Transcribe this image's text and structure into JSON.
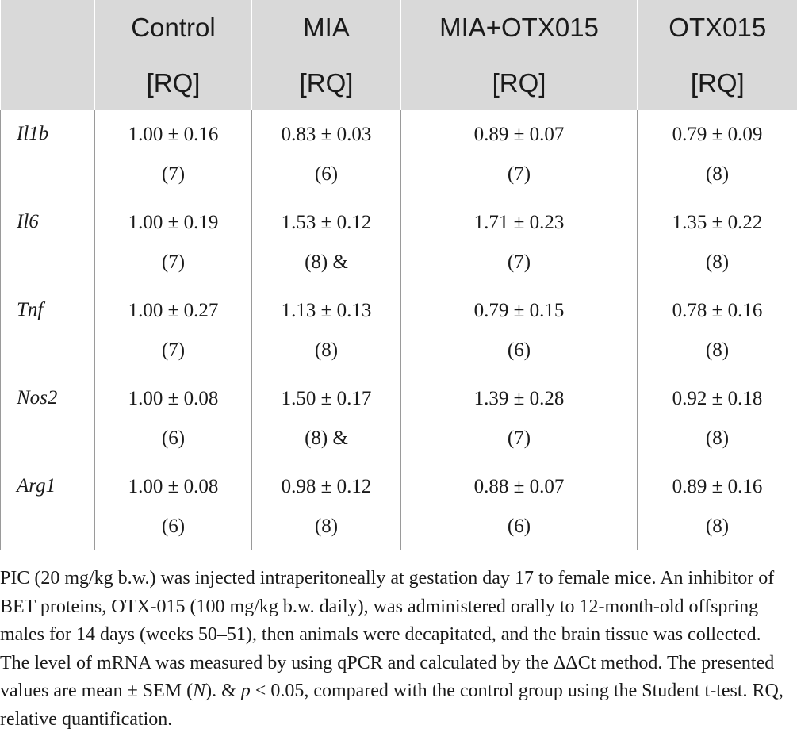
{
  "table": {
    "headers": [
      {
        "name": "",
        "unit": ""
      },
      {
        "name": "Control",
        "unit": "[RQ]"
      },
      {
        "name": "MIA",
        "unit": "[RQ]"
      },
      {
        "name": "MIA+OTX015",
        "unit": "[RQ]"
      },
      {
        "name": "OTX015",
        "unit": "[RQ]"
      }
    ],
    "rows": [
      {
        "gene": "Il1b",
        "cells": [
          {
            "value": "1.00 ± 0.16",
            "n": "(7)"
          },
          {
            "value": "0.83 ± 0.03",
            "n": "(6)"
          },
          {
            "value": "0.89 ± 0.07",
            "n": "(7)"
          },
          {
            "value": "0.79 ± 0.09",
            "n": "(8)"
          }
        ]
      },
      {
        "gene": "Il6",
        "cells": [
          {
            "value": "1.00 ± 0.19",
            "n": "(7)"
          },
          {
            "value": "1.53 ± 0.12",
            "n": "(8) &"
          },
          {
            "value": "1.71 ± 0.23",
            "n": "(7)"
          },
          {
            "value": "1.35 ± 0.22",
            "n": "(8)"
          }
        ]
      },
      {
        "gene": "Tnf",
        "cells": [
          {
            "value": "1.00 ± 0.27",
            "n": "(7)"
          },
          {
            "value": "1.13 ± 0.13",
            "n": "(8)"
          },
          {
            "value": "0.79 ± 0.15",
            "n": "(6)"
          },
          {
            "value": "0.78 ± 0.16",
            "n": "(8)"
          }
        ]
      },
      {
        "gene": "Nos2",
        "cells": [
          {
            "value": "1.00 ± 0.08",
            "n": "(6)"
          },
          {
            "value": "1.50 ± 0.17",
            "n": "(8) &"
          },
          {
            "value": "1.39 ± 0.28",
            "n": "(7)"
          },
          {
            "value": "0.92 ± 0.18",
            "n": "(8)"
          }
        ]
      },
      {
        "gene": "Arg1",
        "cells": [
          {
            "value": "1.00 ± 0.08",
            "n": "(6)"
          },
          {
            "value": "0.98 ± 0.12",
            "n": "(8)"
          },
          {
            "value": "0.88 ± 0.07",
            "n": "(6)"
          },
          {
            "value": "0.89 ± 0.16",
            "n": "(8)"
          }
        ]
      }
    ]
  },
  "footnote": {
    "part1": "PIC (20 mg/kg b.w.) was injected intraperitoneally at gestation day 17 to female mice. An inhibitor of BET proteins, OTX-015 (100 mg/kg b.w. daily), was administered orally to 12-month-old offspring males for 14 days (weeks 50–51), then animals were decapitated, and the brain tissue was collected. The level of mRNA was measured by using qPCR and calculated by the ΔΔCt method. The presented values are mean ± SEM (",
    "n_symbol": "N",
    "part2": "). & ",
    "p_symbol": "p",
    "part3": " < 0.05, compared with the control group using the Student t-test. RQ, relative quantification."
  }
}
